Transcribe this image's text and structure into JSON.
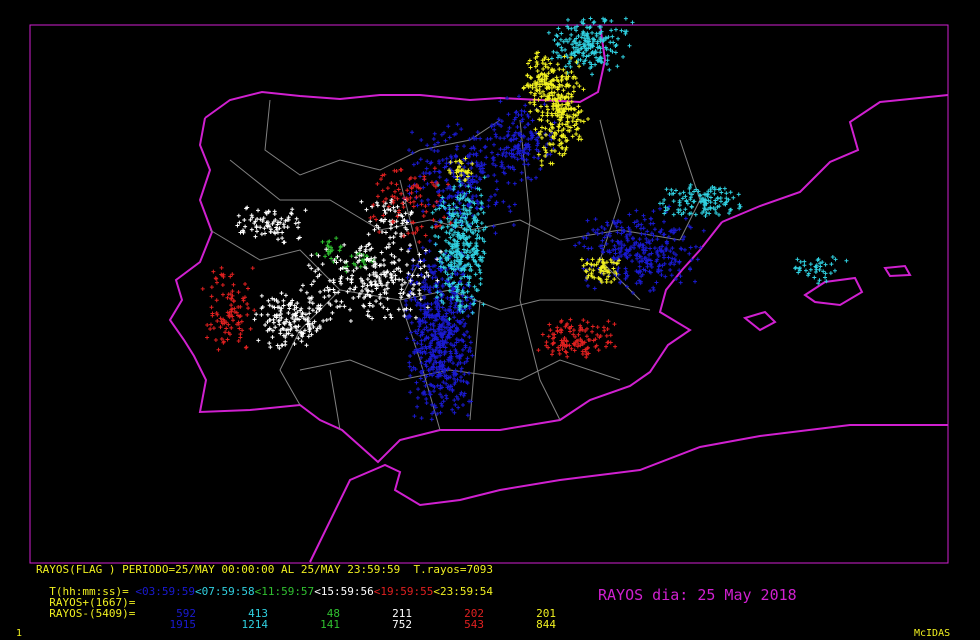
{
  "header": {
    "line1": "RAYOS(FLAG ) PERIODO=25/MAY 00:00:00 AL 25/MAY 23:59:59  T.rayos=7093"
  },
  "legend": {
    "time_label": "T(hh:mm:ss)=",
    "intervals": [
      {
        "label": "<03:59:59",
        "color": "#1a1ad0"
      },
      {
        "label": "<07:59:58",
        "color": "#30d0e0"
      },
      {
        "label": "<11:59:57",
        "color": "#30c030"
      },
      {
        "label": "<15:59:56",
        "color": "#ffffff"
      },
      {
        "label": "<19:59:55",
        "color": "#e02020"
      },
      {
        "label": "<23:59:54",
        "color": "#f0f020"
      }
    ],
    "positive_label": "RAYOS+(1667)=",
    "positive_counts": [
      "592",
      "413",
      "48",
      "211",
      "202",
      "201"
    ],
    "negative_label": "RAYOS-(5409)=",
    "negative_counts": [
      "1915",
      "1214",
      "141",
      "752",
      "543",
      "844"
    ]
  },
  "title": "RAYOS dia: 25 May 2018",
  "footer": {
    "frame_number": "1",
    "software": "McIDAS"
  },
  "colors": {
    "coastline": "#d020d0",
    "borders": "#808080",
    "text": "#f0f020",
    "background": "#000000"
  }
}
